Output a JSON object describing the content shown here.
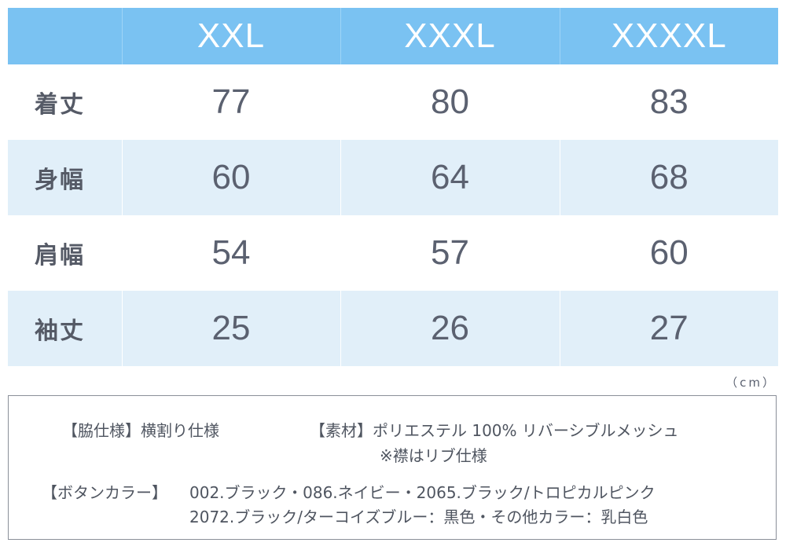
{
  "table": {
    "sizes": [
      "XXL",
      "XXXL",
      "XXXXL"
    ],
    "rows": [
      {
        "label": "着丈",
        "values": [
          "77",
          "80",
          "83"
        ]
      },
      {
        "label": "身幅",
        "values": [
          "60",
          "64",
          "68"
        ]
      },
      {
        "label": "肩幅",
        "values": [
          "54",
          "57",
          "60"
        ]
      },
      {
        "label": "袖丈",
        "values": [
          "25",
          "26",
          "27"
        ]
      }
    ],
    "unit": "（cm）"
  },
  "spec": {
    "side": "【脇仕様】横割り仕様",
    "material": "【素材】ポリエステル 100% リバーシブルメッシュ",
    "material_note": "※襟はリブ仕様",
    "button_label": "【ボタンカラー】",
    "button_line1": "002.ブラック・086.ネイビー・2065.ブラック/トロピカルピンク",
    "button_line2": "2072.ブラック/ターコイズブルー：黒色・その他カラー：乳白色"
  },
  "colors": {
    "header_bg": "#7ac2f2",
    "row_shade": "#e1eff9",
    "text": "#5b6170"
  }
}
